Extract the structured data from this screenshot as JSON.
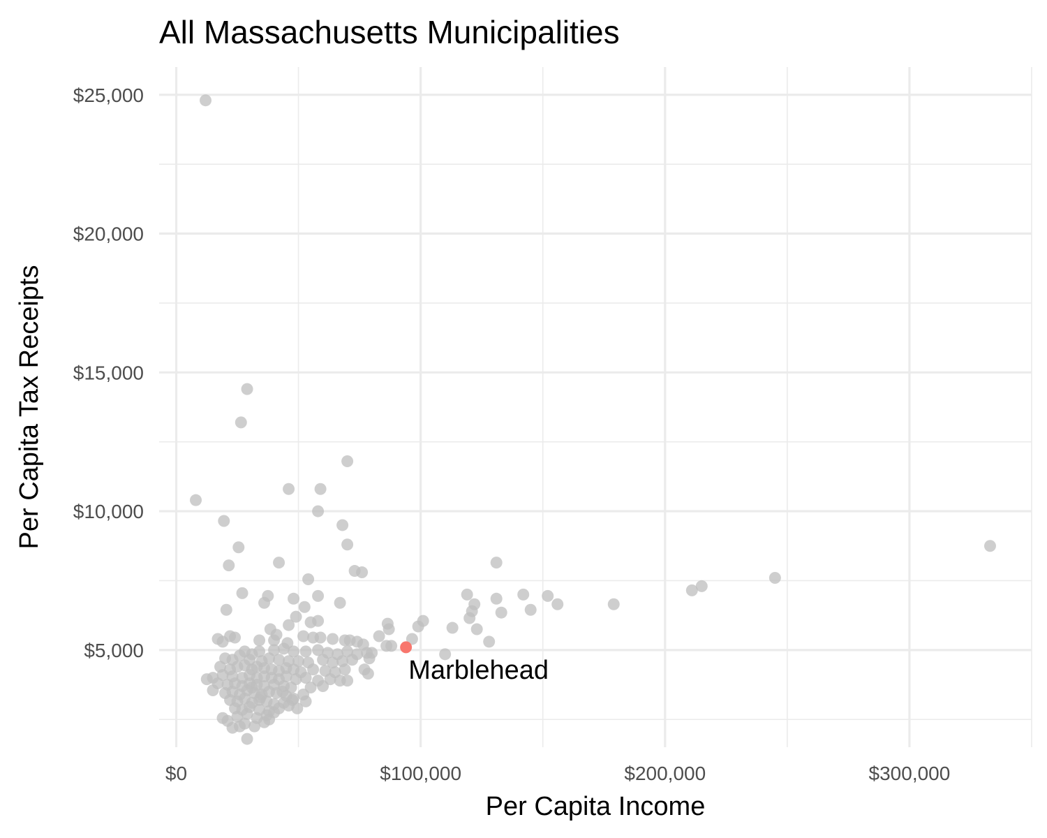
{
  "chart_data": {
    "type": "scatter",
    "title": "All Massachusetts Municipalities",
    "xlabel": "Per Capita Income",
    "ylabel": "Per Capita Tax Receipts",
    "xlim": [
      -7000,
      350000
    ],
    "ylim": [
      1500,
      26000
    ],
    "x_ticks": [
      0,
      100000,
      200000,
      300000
    ],
    "x_tick_labels": [
      "$0",
      "$100,000",
      "$200,000",
      "$300,000"
    ],
    "y_ticks": [
      5000,
      10000,
      15000,
      20000,
      25000
    ],
    "y_tick_labels": [
      "$5,000",
      "$10,000",
      "$15,000",
      "$20,000",
      "$25,000"
    ],
    "grid": true,
    "colors": {
      "points": "#bebebe",
      "highlight": "#f8766d",
      "grid": "#ebebeb"
    },
    "highlight": {
      "label": "Marblehead",
      "x": 94000,
      "y": 5100
    },
    "points": [
      [
        12000,
        24800
      ],
      [
        29000,
        14400
      ],
      [
        26500,
        13200
      ],
      [
        70000,
        11800
      ],
      [
        8000,
        10400
      ],
      [
        46000,
        10800
      ],
      [
        59000,
        10800
      ],
      [
        58000,
        10000
      ],
      [
        68000,
        9500
      ],
      [
        19500,
        9650
      ],
      [
        70000,
        8800
      ],
      [
        25500,
        8700
      ],
      [
        42000,
        8150
      ],
      [
        21500,
        8050
      ],
      [
        73000,
        7850
      ],
      [
        76000,
        7800
      ],
      [
        54000,
        7550
      ],
      [
        131000,
        8150
      ],
      [
        27000,
        7050
      ],
      [
        48000,
        6850
      ],
      [
        58000,
        6950
      ],
      [
        37500,
        6950
      ],
      [
        36000,
        6700
      ],
      [
        67000,
        6700
      ],
      [
        52500,
        6550
      ],
      [
        20500,
        6450
      ],
      [
        49000,
        6200
      ],
      [
        58000,
        6050
      ],
      [
        55000,
        6000
      ],
      [
        46000,
        5900
      ],
      [
        38500,
        5750
      ],
      [
        41000,
        5550
      ],
      [
        34000,
        5350
      ],
      [
        40000,
        5350
      ],
      [
        45500,
        5250
      ],
      [
        24000,
        5450
      ],
      [
        17000,
        5400
      ],
      [
        19000,
        5300
      ],
      [
        22000,
        5500
      ],
      [
        52000,
        5500
      ],
      [
        56000,
        5450
      ],
      [
        59000,
        5450
      ],
      [
        64000,
        5400
      ],
      [
        69000,
        5350
      ],
      [
        71000,
        5350
      ],
      [
        74000,
        5300
      ],
      [
        76500,
        5200
      ],
      [
        28000,
        4950
      ],
      [
        31000,
        4850
      ],
      [
        34000,
        4950
      ],
      [
        40000,
        5000
      ],
      [
        44000,
        5050
      ],
      [
        48000,
        4950
      ],
      [
        53000,
        4950
      ],
      [
        58000,
        5000
      ],
      [
        62000,
        4900
      ],
      [
        66000,
        4850
      ],
      [
        70000,
        4950
      ],
      [
        74000,
        4850
      ],
      [
        78000,
        4900
      ],
      [
        80000,
        4900
      ],
      [
        20000,
        4700
      ],
      [
        23000,
        4650
      ],
      [
        26000,
        4800
      ],
      [
        30000,
        4650
      ],
      [
        35000,
        4600
      ],
      [
        38000,
        4700
      ],
      [
        42000,
        4650
      ],
      [
        46000,
        4600
      ],
      [
        50000,
        4600
      ],
      [
        54000,
        4550
      ],
      [
        60000,
        4650
      ],
      [
        64000,
        4550
      ],
      [
        68000,
        4600
      ],
      [
        72000,
        4650
      ],
      [
        79000,
        4700
      ],
      [
        18000,
        4400
      ],
      [
        22000,
        4300
      ],
      [
        25000,
        4400
      ],
      [
        28000,
        4450
      ],
      [
        31000,
        4300
      ],
      [
        33000,
        4400
      ],
      [
        36000,
        4350
      ],
      [
        39000,
        4300
      ],
      [
        42000,
        4250
      ],
      [
        45000,
        4350
      ],
      [
        48000,
        4300
      ],
      [
        51000,
        4200
      ],
      [
        56000,
        4300
      ],
      [
        61000,
        4250
      ],
      [
        65000,
        4200
      ],
      [
        69000,
        4300
      ],
      [
        77000,
        4300
      ],
      [
        78500,
        4150
      ],
      [
        15000,
        4000
      ],
      [
        19000,
        4100
      ],
      [
        23000,
        4050
      ],
      [
        27000,
        4000
      ],
      [
        30000,
        4100
      ],
      [
        33000,
        4000
      ],
      [
        36000,
        4050
      ],
      [
        39000,
        4000
      ],
      [
        42000,
        3950
      ],
      [
        45000,
        4050
      ],
      [
        49000,
        3950
      ],
      [
        53000,
        4000
      ],
      [
        58000,
        3900
      ],
      [
        63000,
        3950
      ],
      [
        67000,
        3900
      ],
      [
        70000,
        3900
      ],
      [
        12500,
        3950
      ],
      [
        17000,
        3800
      ],
      [
        21000,
        3750
      ],
      [
        24000,
        3800
      ],
      [
        27000,
        3700
      ],
      [
        30000,
        3800
      ],
      [
        33000,
        3750
      ],
      [
        36000,
        3700
      ],
      [
        40000,
        3750
      ],
      [
        44000,
        3700
      ],
      [
        47000,
        3650
      ],
      [
        55000,
        3650
      ],
      [
        60000,
        3700
      ],
      [
        15000,
        3550
      ],
      [
        20000,
        3450
      ],
      [
        23000,
        3500
      ],
      [
        26000,
        3400
      ],
      [
        29000,
        3550
      ],
      [
        32000,
        3450
      ],
      [
        35000,
        3400
      ],
      [
        38000,
        3500
      ],
      [
        41000,
        3450
      ],
      [
        45000,
        3350
      ],
      [
        52000,
        3400
      ],
      [
        22000,
        3200
      ],
      [
        25000,
        3150
      ],
      [
        28000,
        3250
      ],
      [
        31000,
        3100
      ],
      [
        34000,
        3200
      ],
      [
        37000,
        3150
      ],
      [
        40000,
        3050
      ],
      [
        44000,
        3100
      ],
      [
        48000,
        3250
      ],
      [
        53000,
        3150
      ],
      [
        24000,
        2900
      ],
      [
        27000,
        2850
      ],
      [
        30000,
        2950
      ],
      [
        34000,
        2850
      ],
      [
        38000,
        2800
      ],
      [
        42000,
        2900
      ],
      [
        46000,
        3000
      ],
      [
        49500,
        2900
      ],
      [
        25000,
        2600
      ],
      [
        29000,
        2700
      ],
      [
        33000,
        2550
      ],
      [
        37000,
        2650
      ],
      [
        19000,
        2550
      ],
      [
        21000,
        2450
      ],
      [
        28000,
        2350
      ],
      [
        32000,
        2250
      ],
      [
        36000,
        2400
      ],
      [
        23000,
        2200
      ],
      [
        26000,
        2250
      ],
      [
        29000,
        1800
      ],
      [
        38000,
        2500
      ],
      [
        40000,
        2750
      ],
      [
        31000,
        3650
      ],
      [
        34500,
        3300
      ],
      [
        43500,
        3500
      ],
      [
        47500,
        3200
      ],
      [
        86500,
        5950
      ],
      [
        83000,
        5500
      ],
      [
        87000,
        5750
      ],
      [
        88000,
        5150
      ],
      [
        86000,
        5150
      ],
      [
        96500,
        5400
      ],
      [
        99000,
        5850
      ],
      [
        101000,
        6050
      ],
      [
        110000,
        4850
      ],
      [
        113000,
        5800
      ],
      [
        119000,
        7000
      ],
      [
        120000,
        6150
      ],
      [
        122000,
        6650
      ],
      [
        121000,
        6400
      ],
      [
        123000,
        5750
      ],
      [
        128000,
        5300
      ],
      [
        131000,
        6850
      ],
      [
        133000,
        6350
      ],
      [
        142000,
        7000
      ],
      [
        145000,
        6450
      ],
      [
        152000,
        6950
      ],
      [
        156000,
        6650
      ],
      [
        179000,
        6650
      ],
      [
        211000,
        7150
      ],
      [
        215000,
        7300
      ],
      [
        245000,
        7600
      ],
      [
        333000,
        8750
      ]
    ]
  }
}
